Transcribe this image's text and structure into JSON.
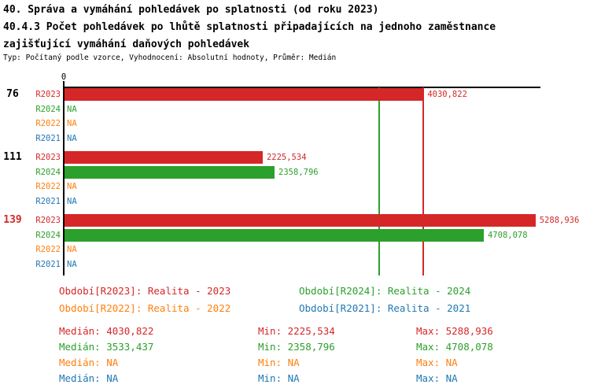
{
  "header": {
    "title_line1": "40. Správa a vymáhání pohledávek po splatnosti (od roku 2023)",
    "title_line2": "40.4.3 Počet pohledávek po lhůtě splatnosti připadajících na jednoho zaměstnance",
    "title_line3": "zajišťující vymáhání daňových pohledávek",
    "subtitle": "Typ: Počítaný podle vzorce, Vyhodnocení: Absolutní hodnoty, Průměr: Medián"
  },
  "colors": {
    "R2023": "#D62728",
    "R2024": "#2CA02C",
    "R2022": "#FF7F0E",
    "R2021": "#1F77B4",
    "axis": "#000000"
  },
  "chart_data": {
    "type": "bar",
    "orientation": "horizontal",
    "xlim": [
      0,
      5353
    ],
    "zero_tick_label": "0",
    "series_order": [
      "R2023",
      "R2024",
      "R2022",
      "R2021"
    ],
    "groups": [
      {
        "label": "76",
        "label_color": "#000000",
        "bars": [
          {
            "series": "R2023",
            "value": 4030.822,
            "display": "4030,822"
          },
          {
            "series": "R2024",
            "value": null,
            "display": "NA"
          },
          {
            "series": "R2022",
            "value": null,
            "display": "NA"
          },
          {
            "series": "R2021",
            "value": null,
            "display": "NA"
          }
        ]
      },
      {
        "label": "111",
        "label_color": "#000000",
        "bars": [
          {
            "series": "R2023",
            "value": 2225.534,
            "display": "2225,534"
          },
          {
            "series": "R2024",
            "value": 2358.796,
            "display": "2358,796"
          },
          {
            "series": "R2022",
            "value": null,
            "display": "NA"
          },
          {
            "series": "R2021",
            "value": null,
            "display": "NA"
          }
        ]
      },
      {
        "label": "139",
        "label_color": "#D62728",
        "bars": [
          {
            "series": "R2023",
            "value": 5288.936,
            "display": "5288,936"
          },
          {
            "series": "R2024",
            "value": 4708.078,
            "display": "4708,078"
          },
          {
            "series": "R2022",
            "value": null,
            "display": "NA"
          },
          {
            "series": "R2021",
            "value": null,
            "display": "NA"
          }
        ]
      }
    ],
    "median_lines": [
      {
        "series": "R2023",
        "value": 4030.822,
        "color": "#D62728"
      },
      {
        "series": "R2024",
        "value": 3533.437,
        "color": "#2CA02C"
      }
    ]
  },
  "legend": {
    "items": [
      {
        "label": "Období[R2023]: Realita - 2023",
        "color": "#D62728"
      },
      {
        "label": "Období[R2024]: Realita - 2024",
        "color": "#2CA02C"
      },
      {
        "label": "Období[R2022]: Realita - 2022",
        "color": "#FF7F0E"
      },
      {
        "label": "Období[R2021]: Realita - 2021",
        "color": "#1F77B4"
      }
    ]
  },
  "stats": {
    "rows": [
      {
        "median": "Medián: 4030,822",
        "min": "Min: 2225,534",
        "max": "Max: 5288,936",
        "color": "#D62728"
      },
      {
        "median": "Medián: 3533,437",
        "min": "Min: 2358,796",
        "max": "Max: 4708,078",
        "color": "#2CA02C"
      },
      {
        "median": "Medián: NA",
        "min": "Min: NA",
        "max": "Max: NA",
        "color": "#FF7F0E"
      },
      {
        "median": "Medián: NA",
        "min": "Min: NA",
        "max": "Max: NA",
        "color": "#1F77B4"
      }
    ]
  }
}
